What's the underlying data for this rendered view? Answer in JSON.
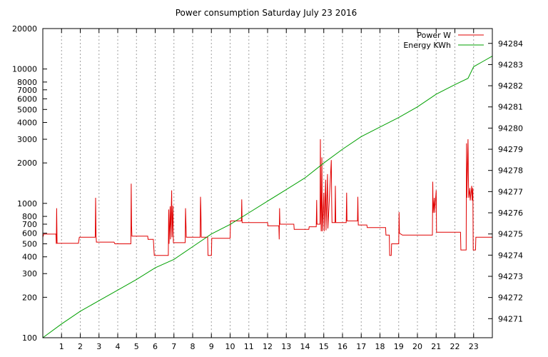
{
  "chart_data": {
    "type": "line",
    "title": "Power consumption Saturday July 23 2016",
    "x_ticks": [
      1,
      2,
      3,
      4,
      5,
      6,
      7,
      8,
      9,
      10,
      11,
      12,
      13,
      14,
      15,
      16,
      17,
      18,
      19,
      20,
      21,
      22,
      23
    ],
    "xlim": [
      0,
      24
    ],
    "left_axis": {
      "scale": "log",
      "ylim": [
        100,
        20000
      ],
      "ticks": [
        100,
        200,
        300,
        400,
        500,
        600,
        700,
        800,
        1000,
        2000,
        3000,
        4000,
        5000,
        6000,
        7000,
        8000,
        10000,
        20000
      ]
    },
    "right_axis": {
      "scale": "linear",
      "ylim": [
        94270.1,
        94284.7
      ],
      "ticks": [
        94271,
        94272,
        94273,
        94274,
        94275,
        94276,
        94277,
        94278,
        94279,
        94280,
        94281,
        94282,
        94283,
        94284
      ]
    },
    "legend_position": "top-right",
    "grid": true,
    "series": [
      {
        "name": "Power W",
        "axis": "left",
        "color": "#e00000",
        "points": [
          [
            0.0,
            560
          ],
          [
            0.05,
            590
          ],
          [
            0.7,
            590
          ],
          [
            0.72,
            500
          ],
          [
            0.74,
            920
          ],
          [
            0.76,
            505
          ],
          [
            1.9,
            505
          ],
          [
            1.95,
            560
          ],
          [
            2.8,
            560
          ],
          [
            2.82,
            1100
          ],
          [
            2.84,
            580
          ],
          [
            2.86,
            515
          ],
          [
            3.8,
            515
          ],
          [
            3.85,
            500
          ],
          [
            4.7,
            500
          ],
          [
            4.72,
            1400
          ],
          [
            4.74,
            680
          ],
          [
            4.76,
            570
          ],
          [
            5.6,
            570
          ],
          [
            5.62,
            540
          ],
          [
            5.9,
            540
          ],
          [
            5.95,
            410
          ],
          [
            6.7,
            410
          ],
          [
            6.72,
            900
          ],
          [
            6.74,
            500
          ],
          [
            6.8,
            950
          ],
          [
            6.82,
            540
          ],
          [
            6.88,
            1250
          ],
          [
            6.9,
            560
          ],
          [
            6.95,
            960
          ],
          [
            6.97,
            510
          ],
          [
            7.6,
            510
          ],
          [
            7.62,
            920
          ],
          [
            7.64,
            740
          ],
          [
            7.66,
            560
          ],
          [
            8.4,
            560
          ],
          [
            8.42,
            1120
          ],
          [
            8.44,
            900
          ],
          [
            8.46,
            560
          ],
          [
            8.8,
            560
          ],
          [
            8.82,
            410
          ],
          [
            9.0,
            410
          ],
          [
            9.02,
            550
          ],
          [
            10.0,
            550
          ],
          [
            10.02,
            740
          ],
          [
            10.6,
            740
          ],
          [
            10.62,
            1070
          ],
          [
            10.64,
            720
          ],
          [
            12.0,
            720
          ],
          [
            12.02,
            680
          ],
          [
            12.6,
            680
          ],
          [
            12.62,
            540
          ],
          [
            12.64,
            920
          ],
          [
            12.66,
            700
          ],
          [
            13.4,
            700
          ],
          [
            13.42,
            640
          ],
          [
            14.2,
            640
          ],
          [
            14.22,
            670
          ],
          [
            14.6,
            670
          ],
          [
            14.62,
            1060
          ],
          [
            14.64,
            700
          ],
          [
            14.8,
            700
          ],
          [
            14.82,
            3000
          ],
          [
            14.84,
            1000
          ],
          [
            14.86,
            620
          ],
          [
            14.9,
            2200
          ],
          [
            14.92,
            620
          ],
          [
            15.0,
            1200
          ],
          [
            15.02,
            620
          ],
          [
            15.1,
            1500
          ],
          [
            15.12,
            630
          ],
          [
            15.2,
            1650
          ],
          [
            15.22,
            650
          ],
          [
            15.4,
            2100
          ],
          [
            15.42,
            1050
          ],
          [
            15.44,
            720
          ],
          [
            15.6,
            720
          ],
          [
            15.62,
            1350
          ],
          [
            15.64,
            720
          ],
          [
            16.2,
            720
          ],
          [
            16.22,
            1200
          ],
          [
            16.24,
            740
          ],
          [
            16.8,
            740
          ],
          [
            16.82,
            1120
          ],
          [
            16.84,
            690
          ],
          [
            17.3,
            690
          ],
          [
            17.32,
            660
          ],
          [
            18.3,
            660
          ],
          [
            18.32,
            580
          ],
          [
            18.5,
            580
          ],
          [
            18.52,
            410
          ],
          [
            18.6,
            410
          ],
          [
            18.62,
            500
          ],
          [
            19.0,
            500
          ],
          [
            19.02,
            860
          ],
          [
            19.04,
            600
          ],
          [
            19.2,
            580
          ],
          [
            20.8,
            580
          ],
          [
            20.82,
            1450
          ],
          [
            20.84,
            850
          ],
          [
            20.9,
            1100
          ],
          [
            20.92,
            850
          ],
          [
            21.0,
            1250
          ],
          [
            21.02,
            610
          ],
          [
            22.3,
            610
          ],
          [
            22.32,
            450
          ],
          [
            22.6,
            450
          ],
          [
            22.62,
            2800
          ],
          [
            22.64,
            1100
          ],
          [
            22.7,
            3000
          ],
          [
            22.72,
            1600
          ],
          [
            22.74,
            1100
          ],
          [
            22.8,
            1300
          ],
          [
            22.82,
            1050
          ],
          [
            22.9,
            1350
          ],
          [
            22.92,
            1050
          ],
          [
            22.96,
            1300
          ],
          [
            22.98,
            450
          ],
          [
            23.1,
            450
          ],
          [
            23.12,
            560
          ],
          [
            24.0,
            560
          ]
        ]
      },
      {
        "name": "Energy KWh",
        "axis": "right",
        "color": "#00a000",
        "points": [
          [
            0.0,
            94270.1
          ],
          [
            1.0,
            94270.75
          ],
          [
            2.0,
            94271.35
          ],
          [
            3.0,
            94271.85
          ],
          [
            4.0,
            94272.35
          ],
          [
            5.0,
            94272.85
          ],
          [
            6.0,
            94273.4
          ],
          [
            7.0,
            94273.8
          ],
          [
            8.0,
            94274.4
          ],
          [
            9.0,
            94275.0
          ],
          [
            10.0,
            94275.45
          ],
          [
            11.0,
            94276.0
          ],
          [
            12.0,
            94276.55
          ],
          [
            13.0,
            94277.1
          ],
          [
            14.0,
            94277.65
          ],
          [
            15.0,
            94278.35
          ],
          [
            16.0,
            94279.0
          ],
          [
            17.0,
            94279.6
          ],
          [
            18.0,
            94280.05
          ],
          [
            19.0,
            94280.5
          ],
          [
            20.0,
            94281.0
          ],
          [
            21.0,
            94281.6
          ],
          [
            22.0,
            94282.05
          ],
          [
            22.7,
            94282.35
          ],
          [
            23.0,
            94282.9
          ],
          [
            23.5,
            94283.15
          ],
          [
            24.0,
            94283.4
          ]
        ]
      }
    ]
  }
}
